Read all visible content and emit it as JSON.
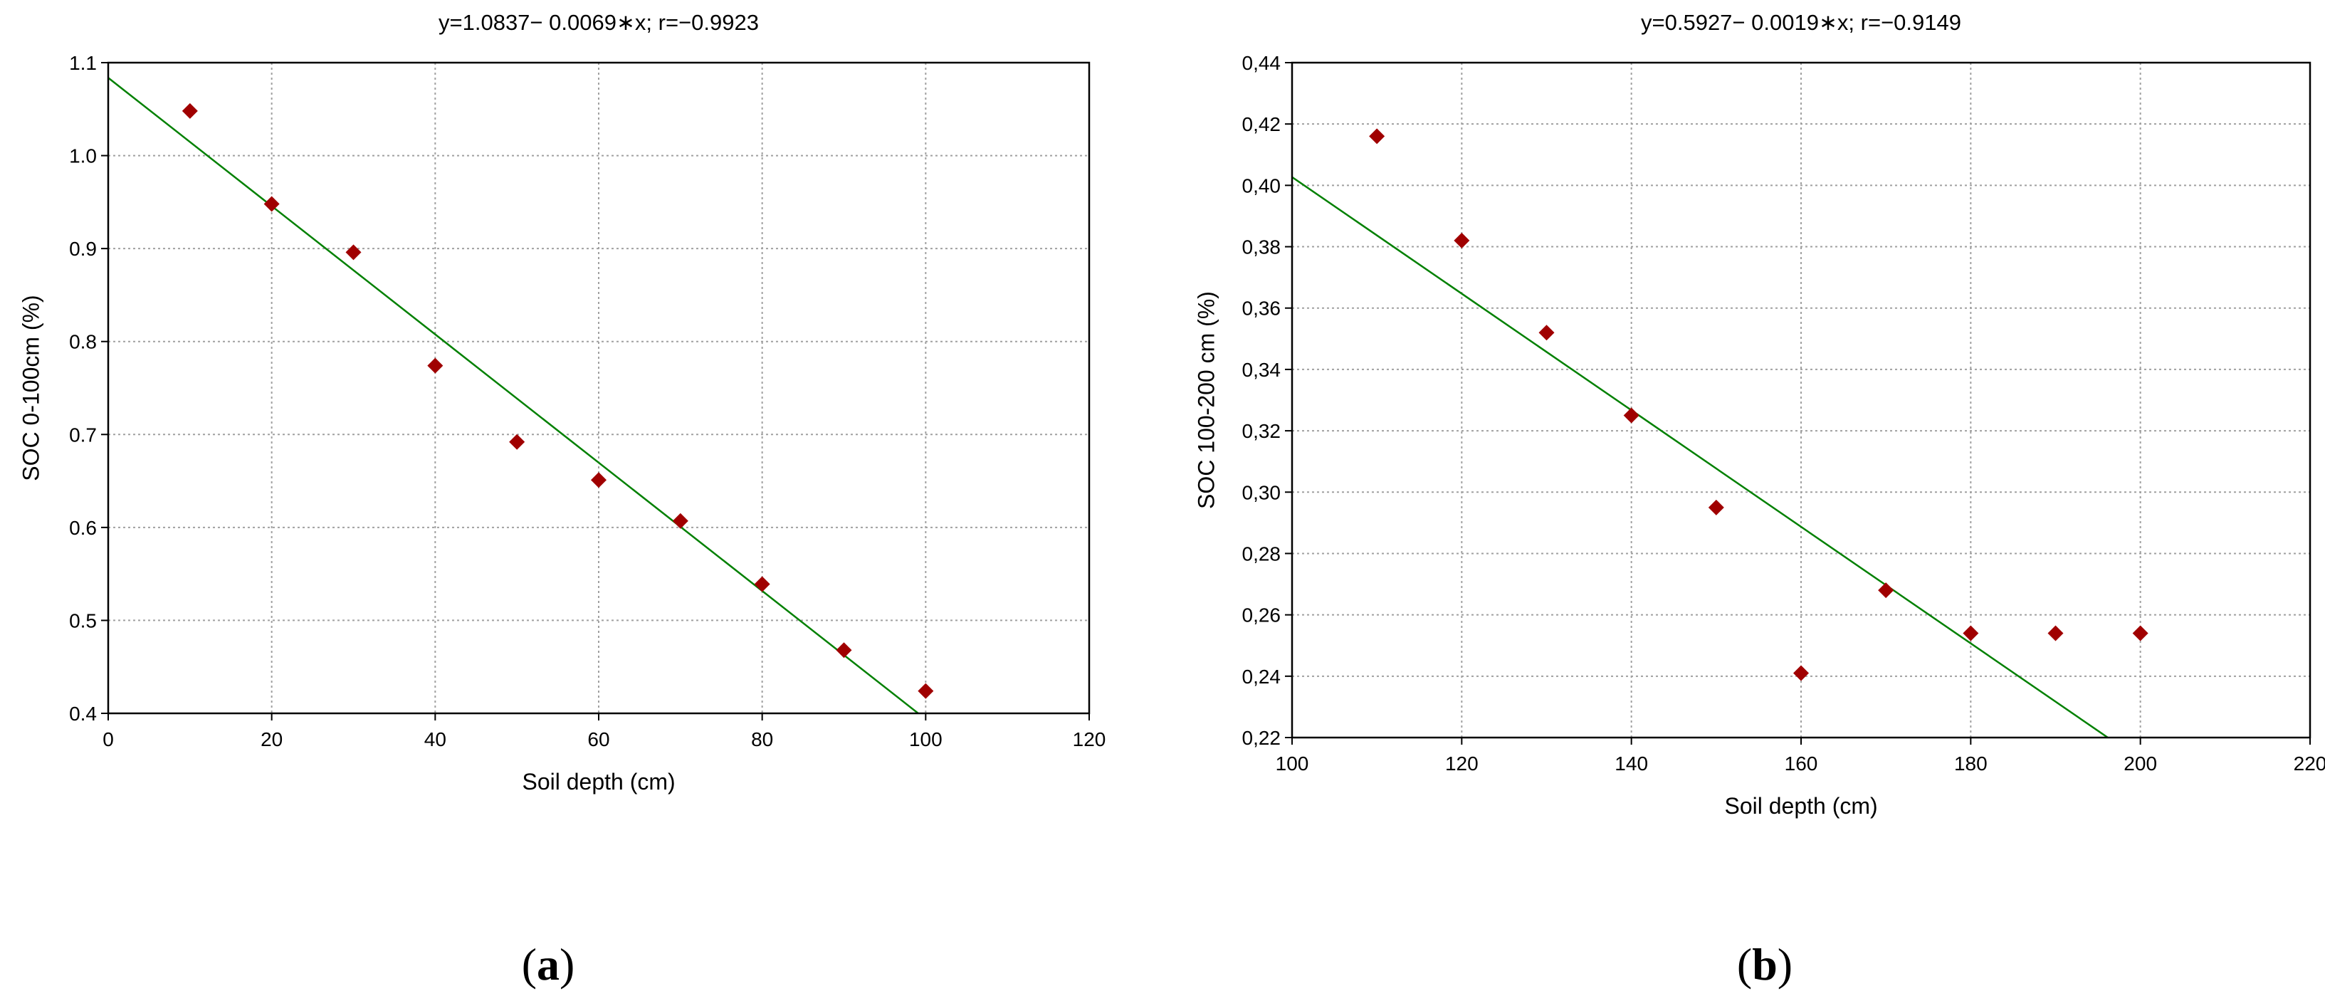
{
  "chart_data": [
    {
      "type": "scatter",
      "panel": "(a)",
      "title": "y=1.0837− 0.0069∗x; r=−0.9923",
      "xlabel": "Soil depth (cm)",
      "ylabel": "SOC 0-100cm (%)",
      "xlim": [
        0,
        120
      ],
      "ylim": [
        0.4,
        1.1
      ],
      "x_ticks": [
        "0",
        "20",
        "40",
        "60",
        "80",
        "100",
        "120"
      ],
      "y_ticks": [
        "0.4",
        "0.5",
        "0.6",
        "0.7",
        "0.8",
        "0.9",
        "1.0",
        "1.1"
      ],
      "grid": true,
      "points": [
        {
          "x": 10,
          "y": 1.048
        },
        {
          "x": 20,
          "y": 0.948
        },
        {
          "x": 30,
          "y": 0.896
        },
        {
          "x": 40,
          "y": 0.774
        },
        {
          "x": 50,
          "y": 0.692
        },
        {
          "x": 60,
          "y": 0.651
        },
        {
          "x": 70,
          "y": 0.607
        },
        {
          "x": 80,
          "y": 0.539
        },
        {
          "x": 90,
          "y": 0.468
        },
        {
          "x": 100,
          "y": 0.424
        }
      ],
      "fit_line": {
        "intercept": 1.0837,
        "slope": -0.0069
      },
      "colors": {
        "points": "#a00000",
        "line": "#008000"
      }
    },
    {
      "type": "scatter",
      "panel": "(b)",
      "title": "y=0.5927− 0.0019∗x; r=−0.9149",
      "xlabel": "Soil depth (cm)",
      "ylabel": "SOC 100-200 cm (%)",
      "xlim": [
        100,
        220
      ],
      "ylim": [
        0.22,
        0.44
      ],
      "x_ticks": [
        "100",
        "120",
        "140",
        "160",
        "180",
        "200",
        "220"
      ],
      "y_ticks": [
        "0,22",
        "0,24",
        "0,26",
        "0,28",
        "0,30",
        "0,32",
        "0,34",
        "0,36",
        "0,38",
        "0,40",
        "0,42",
        "0,44"
      ],
      "grid": true,
      "points": [
        {
          "x": 110,
          "y": 0.416
        },
        {
          "x": 120,
          "y": 0.382
        },
        {
          "x": 130,
          "y": 0.352
        },
        {
          "x": 140,
          "y": 0.325
        },
        {
          "x": 150,
          "y": 0.295
        },
        {
          "x": 160,
          "y": 0.241
        },
        {
          "x": 170,
          "y": 0.268
        },
        {
          "x": 180,
          "y": 0.254
        },
        {
          "x": 190,
          "y": 0.254
        },
        {
          "x": 200,
          "y": 0.254
        }
      ],
      "fit_line": {
        "intercept": 0.5927,
        "slope": -0.0019
      },
      "colors": {
        "points": "#a00000",
        "line": "#008000"
      }
    }
  ],
  "captions": {
    "a": {
      "open": "(",
      "letter": "a",
      "close": ")"
    },
    "b": {
      "open": "(",
      "letter": "b",
      "close": ")"
    }
  }
}
